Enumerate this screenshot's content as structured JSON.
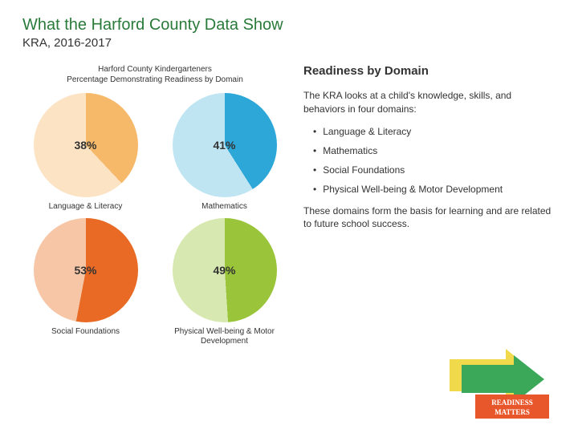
{
  "title": "What the Harford County Data Show",
  "subtitle": "KRA, 2016-2017",
  "charts_caption_line1": "Harford County Kindergarteners",
  "charts_caption_line2": "Percentage Demonstrating Readiness by Domain",
  "charts": [
    {
      "type": "pie",
      "value_pct": 38,
      "label": "38%",
      "title": "Language & Literacy",
      "main_color": "#f6b96a",
      "other_color": "#fbe3c4",
      "bg": "#f8c88e",
      "separator_color": "#c94a2a"
    },
    {
      "type": "pie",
      "value_pct": 41,
      "label": "41%",
      "title": "Mathematics",
      "main_color": "#2ca7d8",
      "other_color": "#bfe5f3",
      "bg": "#7ecbe8",
      "separator_color": "#1f78a0"
    },
    {
      "type": "pie",
      "value_pct": 53,
      "label": "53%",
      "title": "Social Foundations",
      "main_color": "#e86a25",
      "other_color": "#f6c6a7",
      "bg": "#ef9458",
      "separator_color": "#a8441a"
    },
    {
      "type": "pie",
      "value_pct": 49,
      "label": "49%",
      "title": "Physical Well-being & Motor Development",
      "main_color": "#9ac53a",
      "other_color": "#d7e8b0",
      "bg": "#b7d66f",
      "separator_color": "#6f9428"
    }
  ],
  "section_title": "Readiness by Domain",
  "para1": "The KRA looks at a child's knowledge, skills, and behaviors in four domains:",
  "bullets": [
    "Language & Literacy",
    "Mathematics",
    "Social Foundations",
    "Physical Well-being & Motor Development"
  ],
  "para2": "These domains form the basis for learning and are related to future school success.",
  "title_color": "#2a7a3a",
  "logo": {
    "arrow_color": "#f0d94a",
    "arrow_color2": "#3aa858",
    "band_color": "#e8572b",
    "text": "READINESS MATTERS",
    "text_color": "#ffffff"
  }
}
